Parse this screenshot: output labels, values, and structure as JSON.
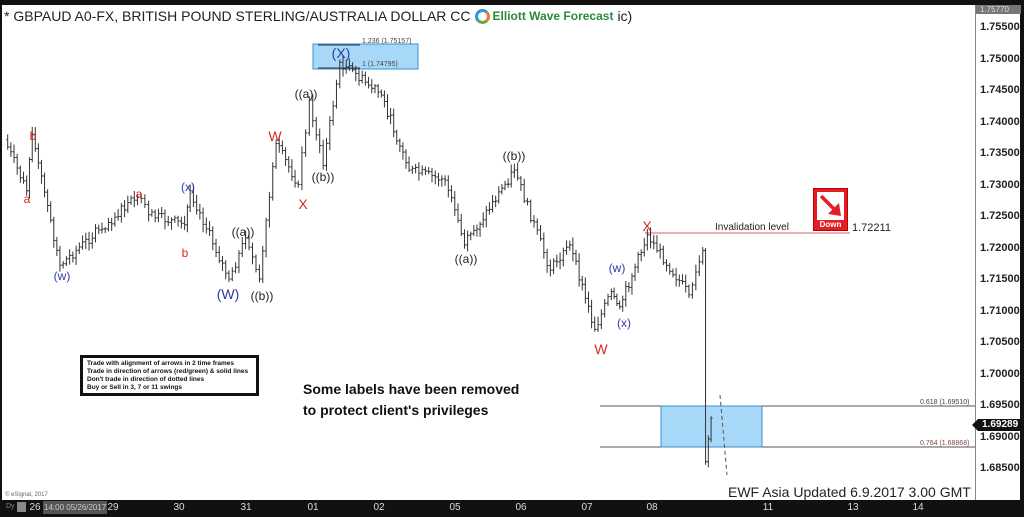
{
  "header": {
    "title": "* GBPAUD A0-FX, BRITISH POUND STERLING/AUSTRALIA DOLLAR CC",
    "title_tail": "ic)",
    "logo_text": "Elliott Wave Forecast"
  },
  "price_axis": {
    "labels": [
      "1.75500",
      "1.75000",
      "1.74500",
      "1.74000",
      "1.73500",
      "1.73000",
      "1.72500",
      "1.72000",
      "1.71500",
      "1.71000",
      "1.70500",
      "1.70000",
      "1.69500",
      "1.69000",
      "1.68500"
    ],
    "top_value": "1.75770",
    "current_price": "1.69289"
  },
  "time_axis": {
    "labels": [
      "26",
      "29",
      "30",
      "31",
      "01",
      "02",
      "05",
      "06",
      "07",
      "08",
      "11",
      "13",
      "14"
    ],
    "cursor_date": "14:00 05/26/2017",
    "prefix": "Dy"
  },
  "annotations": {
    "fib_top_1236": "1.236 (1.75157)",
    "fib_top_1": "1 (1.74795)",
    "fib_618": "0.618 (1.69510)",
    "fib_764": "0.764 (1.68868)",
    "invalidation_label": "Invalidation level",
    "invalidation_value": "1.72211",
    "down_label": "Down",
    "note_lines": [
      "Trade with alignment of arrows in 2 time frames",
      "Trade in direction of arrows (red/green) & solid lines",
      "Don't trade in direction of dotted lines",
      "Buy or Sell in 3, 7 or 11 swings"
    ],
    "disclaimer": [
      "Some labels have been removed",
      "to protect client's privileges"
    ],
    "footer": "EWF Asia Updated 6.9.2017 3.00 GMT",
    "copyright": "© eSignal, 2017"
  },
  "colors": {
    "red": "#d42a1e",
    "blue": "#2d3aa8",
    "black": "#222",
    "bars": "#333",
    "fib_box": "#a8d8f8",
    "fib_border": "#3a8fd0",
    "invalidation": "#d06060"
  },
  "chart_data": {
    "type": "ohlc-bar",
    "title": "GBPAUD A0-FX",
    "ylim": [
      1.683,
      1.7577
    ],
    "swing_path": [
      {
        "date": "05/25 13:00",
        "price": 1.7371
      },
      {
        "date": "05/25 21:00",
        "price": 1.729
      },
      {
        "date": "05/25 23:00",
        "price": 1.7379
      },
      {
        "date": "05/26 09:00",
        "price": 1.7172
      },
      {
        "date": "05/26 23:00",
        "price": 1.7228
      },
      {
        "date": "05/29 13:00",
        "price": 1.728
      },
      {
        "date": "05/29 17:00",
        "price": 1.7252
      },
      {
        "date": "05/30 06:00",
        "price": 1.7236
      },
      {
        "date": "05/30 08:00",
        "price": 1.729
      },
      {
        "date": "05/30 22:00",
        "price": 1.715
      },
      {
        "date": "05/31 04:00",
        "price": 1.7215
      },
      {
        "date": "05/31 09:00",
        "price": 1.715
      },
      {
        "date": "05/31 15:00",
        "price": 1.7365
      },
      {
        "date": "05/31 23:00",
        "price": 1.73
      },
      {
        "date": "06/01 03:00",
        "price": 1.7434
      },
      {
        "date": "06/01 08:00",
        "price": 1.733
      },
      {
        "date": "06/01 14:00",
        "price": 1.7494
      },
      {
        "date": "06/02 05:00",
        "price": 1.7442
      },
      {
        "date": "06/02 15:00",
        "price": 1.7323
      },
      {
        "date": "06/05 04:00",
        "price": 1.7307
      },
      {
        "date": "06/05 11:00",
        "price": 1.7204
      },
      {
        "date": "06/06 05:00",
        "price": 1.7323
      },
      {
        "date": "06/06 18:00",
        "price": 1.7164
      },
      {
        "date": "06/07 01:00",
        "price": 1.7204
      },
      {
        "date": "06/07 10:00",
        "price": 1.707
      },
      {
        "date": "06/07 16:00",
        "price": 1.713
      },
      {
        "date": "06/07 19:00",
        "price": 1.7106
      },
      {
        "date": "06/08 05:00",
        "price": 1.722
      },
      {
        "date": "06/08 20:00",
        "price": 1.7125
      },
      {
        "date": "06/09 01:00",
        "price": 1.7195
      },
      {
        "date": "06/09 02:00",
        "price": 1.686
      },
      {
        "date": "06/09 04:00",
        "price": 1.6929
      }
    ],
    "wave_labels": [
      {
        "text": "a",
        "color": "red"
      },
      {
        "text": "b",
        "color": "red"
      },
      {
        "text": "(w)",
        "color": "blue"
      },
      {
        "text": "a",
        "color": "red"
      },
      {
        "text": "b",
        "color": "red"
      },
      {
        "text": "(x)",
        "color": "blue"
      },
      {
        "text": "(W)",
        "color": "blue"
      },
      {
        "text": "((a))",
        "color": "black"
      },
      {
        "text": "((b))",
        "color": "black"
      },
      {
        "text": "W",
        "color": "red"
      },
      {
        "text": "X",
        "color": "red"
      },
      {
        "text": "((a))",
        "color": "black"
      },
      {
        "text": "((b))",
        "color": "black"
      },
      {
        "text": "(X)",
        "color": "blue"
      },
      {
        "text": "((a))",
        "color": "black"
      },
      {
        "text": "((b))",
        "color": "black"
      },
      {
        "text": "W",
        "color": "red"
      },
      {
        "text": "(w)",
        "color": "blue"
      },
      {
        "text": "(x)",
        "color": "blue"
      },
      {
        "text": "X",
        "color": "red"
      }
    ]
  }
}
